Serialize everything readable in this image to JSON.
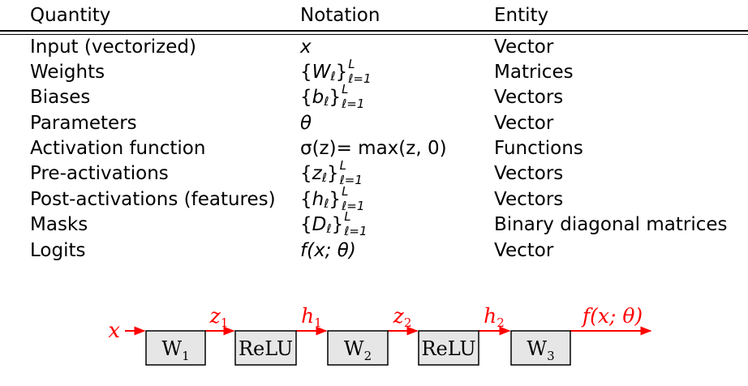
{
  "table": {
    "headers": [
      "Quantity",
      "Notation",
      "Entity"
    ],
    "rows": [
      {
        "quantity": "Input (vectorized)",
        "notation": {
          "kind": "plain",
          "text": "x"
        },
        "entity": "Vector"
      },
      {
        "quantity": "Weights",
        "notation": {
          "kind": "set",
          "base": "W",
          "sub": "ℓ",
          "sup": "L",
          "range": "ℓ=1"
        },
        "entity": "Matrices"
      },
      {
        "quantity": "Biases",
        "notation": {
          "kind": "set",
          "base": "b",
          "sub": "ℓ",
          "sup": "L",
          "range": "ℓ=1"
        },
        "entity": "Vectors"
      },
      {
        "quantity": "Parameters",
        "notation": {
          "kind": "plain",
          "text": "θ"
        },
        "entity": "Vector"
      },
      {
        "quantity": "Activation function",
        "notation": {
          "kind": "plain",
          "text": "σ(z)= max(z, 0)"
        },
        "entity": "Functions"
      },
      {
        "quantity": "Pre-activations",
        "notation": {
          "kind": "set",
          "base": "z",
          "sub": "ℓ",
          "sup": "L",
          "range": "ℓ=1"
        },
        "entity": "Vectors"
      },
      {
        "quantity": "Post-activations (features)",
        "notation": {
          "kind": "set",
          "base": "h",
          "sub": "ℓ",
          "sup": "L",
          "range": "ℓ=1"
        },
        "entity": "Vectors"
      },
      {
        "quantity": "Masks",
        "notation": {
          "kind": "set",
          "base": "D",
          "sub": "ℓ",
          "sup": "L",
          "range": "ℓ=1"
        },
        "entity": "Binary diagonal matrices"
      },
      {
        "quantity": "Logits",
        "notation": {
          "kind": "plain",
          "text": "f(x; θ)"
        },
        "entity": "Vector"
      }
    ]
  },
  "diagram": {
    "input_label": "x",
    "output_label": "f(x; θ)",
    "blocks": [
      {
        "label": "W",
        "sub": "1"
      },
      {
        "label": "ReLU",
        "sub": ""
      },
      {
        "label": "W",
        "sub": "2"
      },
      {
        "label": "ReLU",
        "sub": ""
      },
      {
        "label": "W",
        "sub": "3"
      }
    ],
    "edge_labels": [
      {
        "base": "z",
        "sub": "1"
      },
      {
        "base": "h",
        "sub": "1"
      },
      {
        "base": "z",
        "sub": "2"
      },
      {
        "base": "h",
        "sub": "2"
      }
    ],
    "colors": {
      "signal": "#ff0000",
      "block_fill": "#e6e6e6",
      "block_stroke": "#000000"
    }
  }
}
